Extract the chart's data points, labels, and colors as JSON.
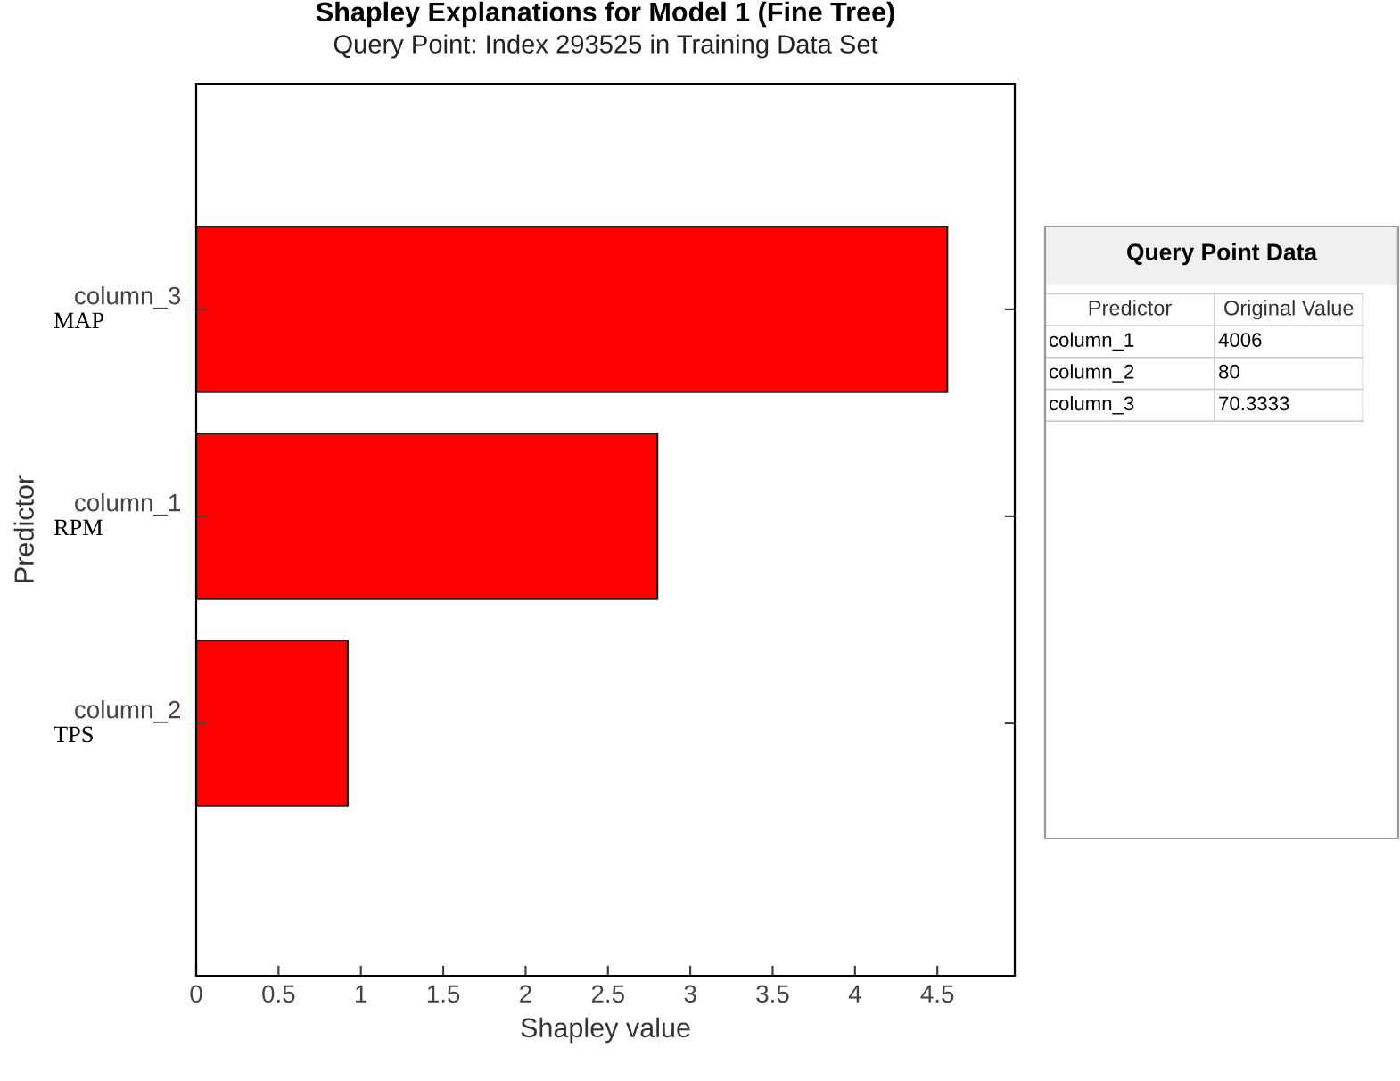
{
  "chart_data": [
    {
      "type": "bar",
      "title": "Shapley Explanations for Model 1 (Fine Tree)",
      "subtitle": "Query Point: Index 293525 in Training Data Set",
      "xlabel": "Shapley value",
      "ylabel": "Predictor",
      "orientation": "horizontal",
      "categories": [
        "column_3",
        "column_1",
        "column_2"
      ],
      "values": [
        4.56,
        2.8,
        0.92
      ],
      "color": "#ff0000",
      "xlim": [
        0,
        4.97
      ],
      "xticks": [
        0,
        0.5,
        1,
        1.5,
        2,
        2.5,
        3,
        3.5,
        4,
        4.5
      ],
      "annotations": [
        "MAP",
        "RPM",
        "TPS"
      ]
    },
    {
      "type": "other",
      "title": "Query Point Data",
      "annotations": [
        "Predictor",
        "Original Value",
        "column_1",
        "4006",
        "column_2",
        "80",
        "column_3",
        "70.3333"
      ]
    }
  ]
}
